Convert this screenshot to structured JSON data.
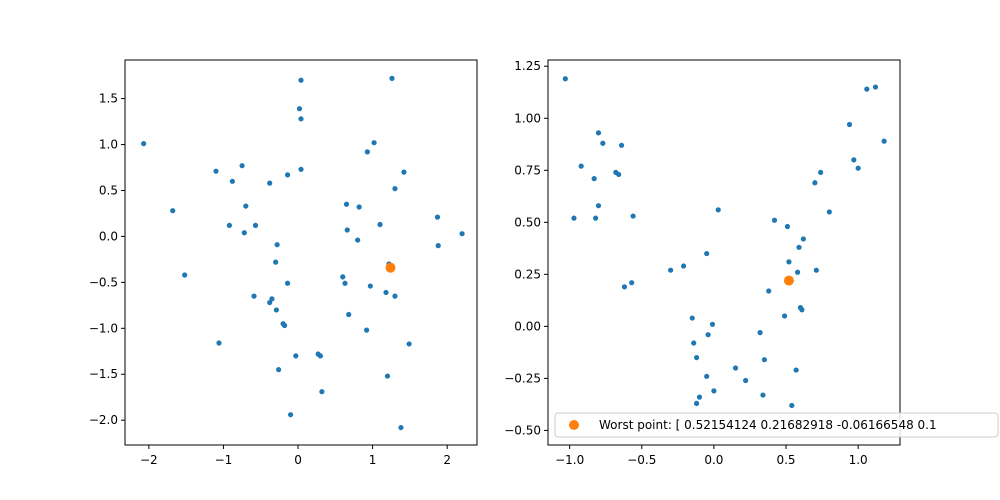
{
  "colors": {
    "series": "#1f77b4",
    "highlight": "#ff7f0e",
    "axes": "#000000",
    "legend_edge": "#cccccc"
  },
  "chart_data": [
    {
      "type": "scatter",
      "title": "",
      "xlabel": "",
      "ylabel": "",
      "xlim": [
        -2.32,
        2.4
      ],
      "ylim": [
        -2.27,
        1.92
      ],
      "xticks": [
        -2,
        -1,
        0,
        1,
        2
      ],
      "xtick_labels": [
        "−2",
        "−1",
        "0",
        "1",
        "2"
      ],
      "yticks": [
        -2.0,
        -1.5,
        -1.0,
        -0.5,
        0.0,
        0.5,
        1.0,
        1.5
      ],
      "ytick_labels": [
        "−2.0",
        "−1.5",
        "−1.0",
        "−0.5",
        "0.0",
        "0.5",
        "1.0",
        "1.5"
      ],
      "grid": false,
      "series": [
        {
          "points": [
            [
              -2.07,
              1.01
            ],
            [
              -1.68,
              0.28
            ],
            [
              -1.52,
              -0.42
            ],
            [
              -1.1,
              0.71
            ],
            [
              -1.06,
              -1.16
            ],
            [
              -0.88,
              0.6
            ],
            [
              -0.92,
              0.12
            ],
            [
              -0.75,
              0.77
            ],
            [
              -0.7,
              0.33
            ],
            [
              -0.72,
              0.04
            ],
            [
              -0.57,
              0.12
            ],
            [
              -0.59,
              -0.65
            ],
            [
              -0.38,
              0.58
            ],
            [
              -0.38,
              -0.72
            ],
            [
              -0.35,
              -0.68
            ],
            [
              -0.28,
              -0.09
            ],
            [
              -0.3,
              -0.28
            ],
            [
              -0.29,
              -0.8
            ],
            [
              -0.26,
              -1.45
            ],
            [
              -0.2,
              -0.95
            ],
            [
              -0.18,
              -0.97
            ],
            [
              -0.14,
              0.67
            ],
            [
              -0.14,
              -0.51
            ],
            [
              -0.1,
              -1.94
            ],
            [
              -0.03,
              -1.3
            ],
            [
              0.02,
              1.39
            ],
            [
              0.04,
              1.28
            ],
            [
              0.04,
              1.7
            ],
            [
              0.04,
              0.73
            ],
            [
              0.27,
              -1.28
            ],
            [
              0.3,
              -1.3
            ],
            [
              0.32,
              -1.69
            ],
            [
              0.6,
              -0.44
            ],
            [
              0.63,
              -0.51
            ],
            [
              0.65,
              0.35
            ],
            [
              0.66,
              0.07
            ],
            [
              0.68,
              -0.85
            ],
            [
              0.8,
              -0.04
            ],
            [
              0.82,
              0.32
            ],
            [
              0.93,
              0.92
            ],
            [
              0.92,
              -1.02
            ],
            [
              0.97,
              -0.54
            ],
            [
              1.02,
              1.02
            ],
            [
              1.1,
              0.13
            ],
            [
              1.18,
              -0.61
            ],
            [
              1.2,
              -1.52
            ],
            [
              1.22,
              -0.3
            ],
            [
              1.26,
              1.72
            ],
            [
              1.3,
              0.52
            ],
            [
              1.3,
              -0.65
            ],
            [
              1.38,
              -2.08
            ],
            [
              1.42,
              0.7
            ],
            [
              1.49,
              -1.17
            ],
            [
              1.87,
              0.21
            ],
            [
              1.88,
              -0.1
            ],
            [
              2.2,
              0.03
            ]
          ]
        },
        {
          "highlight": true,
          "points": [
            [
              1.24,
              -0.34
            ]
          ]
        }
      ]
    },
    {
      "type": "scatter",
      "title": "",
      "xlabel": "",
      "ylabel": "",
      "xlim": [
        -1.15,
        1.29
      ],
      "ylim": [
        -0.57,
        1.28
      ],
      "xticks": [
        -1.0,
        -0.5,
        0.0,
        0.5,
        1.0
      ],
      "xtick_labels": [
        "−1.0",
        "−0.5",
        "0.0",
        "0.5",
        "1.0"
      ],
      "yticks": [
        -0.5,
        -0.25,
        0.0,
        0.25,
        0.5,
        0.75,
        1.0,
        1.25
      ],
      "ytick_labels": [
        "−0.50",
        "−0.25",
        "0.00",
        "0.25",
        "0.50",
        "0.75",
        "1.00",
        "1.25"
      ],
      "grid": false,
      "legend": {
        "position": "lower-center",
        "entries": [
          {
            "series_index": 1,
            "label": "Worst point: [ 0.52154124  0.21682918 -0.06166548  0.1"
          }
        ]
      },
      "series": [
        {
          "points": [
            [
              -1.03,
              1.19
            ],
            [
              -0.97,
              0.52
            ],
            [
              -0.92,
              0.77
            ],
            [
              -0.83,
              0.71
            ],
            [
              -0.82,
              0.52
            ],
            [
              -0.8,
              0.58
            ],
            [
              -0.8,
              0.93
            ],
            [
              -0.77,
              0.88
            ],
            [
              -0.68,
              0.74
            ],
            [
              -0.66,
              0.73
            ],
            [
              -0.64,
              0.87
            ],
            [
              -0.62,
              0.19
            ],
            [
              -0.57,
              0.21
            ],
            [
              -0.56,
              0.53
            ],
            [
              -0.3,
              0.27
            ],
            [
              -0.21,
              0.29
            ],
            [
              -0.15,
              0.04
            ],
            [
              -0.14,
              -0.08
            ],
            [
              -0.12,
              -0.15
            ],
            [
              -0.12,
              -0.37
            ],
            [
              -0.1,
              -0.34
            ],
            [
              -0.05,
              -0.24
            ],
            [
              -0.05,
              0.35
            ],
            [
              -0.04,
              -0.04
            ],
            [
              -0.01,
              0.01
            ],
            [
              0.0,
              -0.31
            ],
            [
              0.03,
              0.56
            ],
            [
              0.15,
              -0.2
            ],
            [
              0.22,
              -0.26
            ],
            [
              0.32,
              -0.03
            ],
            [
              0.34,
              -0.33
            ],
            [
              0.35,
              -0.16
            ],
            [
              0.38,
              0.17
            ],
            [
              0.42,
              0.51
            ],
            [
              0.49,
              0.05
            ],
            [
              0.51,
              0.48
            ],
            [
              0.52,
              0.31
            ],
            [
              0.54,
              -0.38
            ],
            [
              0.57,
              -0.21
            ],
            [
              0.58,
              0.26
            ],
            [
              0.59,
              0.38
            ],
            [
              0.6,
              0.09
            ],
            [
              0.61,
              0.08
            ],
            [
              0.62,
              0.42
            ],
            [
              0.7,
              0.69
            ],
            [
              0.71,
              0.27
            ],
            [
              0.74,
              0.74
            ],
            [
              0.8,
              0.55
            ],
            [
              0.94,
              0.97
            ],
            [
              0.97,
              0.8
            ],
            [
              1.0,
              0.76
            ],
            [
              1.06,
              1.14
            ],
            [
              1.12,
              1.15
            ],
            [
              1.18,
              0.89
            ]
          ]
        },
        {
          "highlight": true,
          "points": [
            [
              0.52,
              0.22
            ]
          ]
        }
      ]
    }
  ]
}
